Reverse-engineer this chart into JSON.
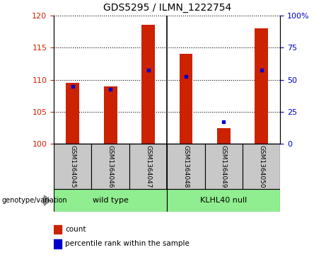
{
  "title": "GDS5295 / ILMN_1222754",
  "samples": [
    "GSM1364045",
    "GSM1364046",
    "GSM1364047",
    "GSM1364048",
    "GSM1364049",
    "GSM1364050"
  ],
  "count_values": [
    109.5,
    109.0,
    118.5,
    114.0,
    102.5,
    118.0
  ],
  "percentile_values": [
    109.0,
    108.5,
    111.5,
    110.5,
    103.5,
    111.5
  ],
  "ylim_left": [
    100,
    120
  ],
  "ylim_right": [
    0,
    100
  ],
  "yticks_left": [
    100,
    105,
    110,
    115,
    120
  ],
  "yticks_right": [
    0,
    25,
    50,
    75,
    100
  ],
  "ytick_labels_right": [
    "0",
    "25",
    "50",
    "75",
    "100%"
  ],
  "group1_label": "wild type",
  "group2_label": "KLHL40 null",
  "genotype_label": "genotype/variation",
  "legend_count_label": "count",
  "legend_pct_label": "percentile rank within the sample",
  "bar_color": "#cc2200",
  "dot_color": "#0000cc",
  "group_color": "#90ee90",
  "gray_color": "#c8c8c8",
  "tick_label_color_left": "#cc2200",
  "tick_label_color_right": "#0000cc",
  "bar_width": 0.35,
  "bar_bottom": 100,
  "n_groups": 6,
  "split_index": 3
}
